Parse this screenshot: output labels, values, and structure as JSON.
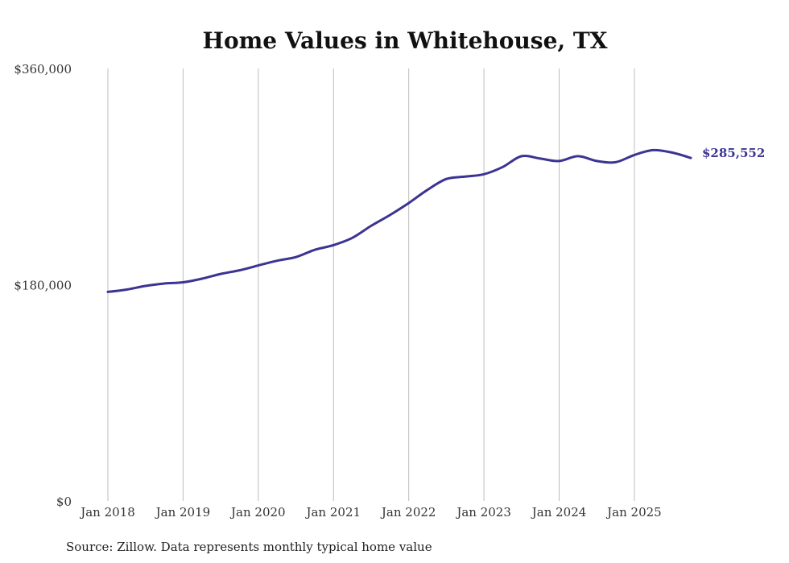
{
  "chart_data": {
    "type": "line",
    "title": "Home Values in Whitehouse, TX",
    "xlabel": "",
    "ylabel": "",
    "ylim": [
      0,
      360000
    ],
    "y_ticks": [
      0,
      180000,
      360000
    ],
    "y_tick_labels": [
      "$0",
      "$180,000",
      "$360,000"
    ],
    "x_ticks": [
      "2018-01",
      "2019-01",
      "2020-01",
      "2021-01",
      "2022-01",
      "2023-01",
      "2024-01",
      "2025-01"
    ],
    "x_tick_labels": [
      "Jan 2018",
      "Jan 2019",
      "Jan 2020",
      "Jan 2021",
      "Jan 2022",
      "Jan 2023",
      "Jan 2024",
      "Jan 2025"
    ],
    "grid": "vertical",
    "line_color": "#3b3492",
    "end_label": "$285,552",
    "source": "Source: Zillow. Data represents monthly typical home value",
    "series": [
      {
        "x": [
          "2018-01",
          "2018-04",
          "2018-07",
          "2018-10",
          "2019-01",
          "2019-04",
          "2019-07",
          "2019-10",
          "2020-01",
          "2020-04",
          "2020-07",
          "2020-10",
          "2021-01",
          "2021-04",
          "2021-07",
          "2021-10",
          "2022-01",
          "2022-04",
          "2022-07",
          "2022-10",
          "2023-01",
          "2023-04",
          "2023-07",
          "2023-10",
          "2024-01",
          "2024-04",
          "2024-07",
          "2024-10",
          "2025-01",
          "2025-04",
          "2025-07",
          "2025-10"
        ],
        "values": [
          174000,
          176000,
          179000,
          181000,
          182000,
          185000,
          189000,
          192000,
          196000,
          200000,
          203000,
          209000,
          213000,
          219000,
          229000,
          238000,
          248000,
          259000,
          268000,
          270000,
          272000,
          278000,
          287000,
          285000,
          283000,
          287000,
          283000,
          282000,
          288000,
          292000,
          290000,
          285552
        ]
      }
    ]
  }
}
